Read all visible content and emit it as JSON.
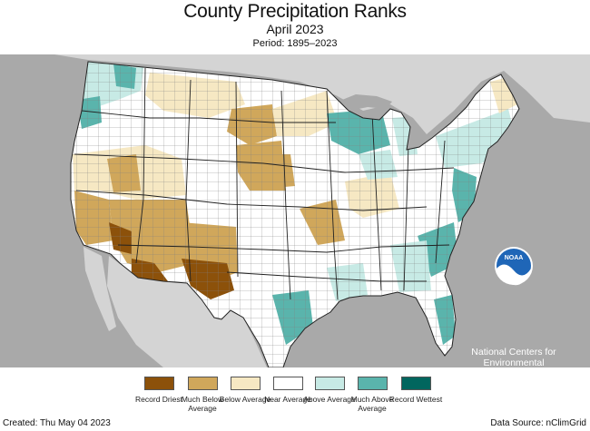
{
  "header": {
    "title": "County Precipitation Ranks",
    "subtitle": "April 2023",
    "period": "Period: 1895–2023"
  },
  "branding": {
    "logo_text": "NOAA",
    "org_name": "National Centers for Environmental Information"
  },
  "legend": [
    {
      "label": "Record Driest",
      "color": "#8c510a"
    },
    {
      "label": "Much Below Average",
      "color": "#d0a75b"
    },
    {
      "label": "Below Average",
      "color": "#f6e8c3"
    },
    {
      "label": "Near Average",
      "color": "#ffffff"
    },
    {
      "label": "Above Average",
      "color": "#c7eae5"
    },
    {
      "label": "Much Above Average",
      "color": "#5ab4ac"
    },
    {
      "label": "Record Wettest",
      "color": "#01665e"
    }
  ],
  "footer": {
    "created": "Created: Thu May 04 2023",
    "source": "Data Source: nClimGrid"
  },
  "colors": {
    "ocean": "#a9a9a9",
    "land_outside": "#d4d4d4",
    "county_border": "#7a7a7a",
    "state_border": "#222222"
  }
}
